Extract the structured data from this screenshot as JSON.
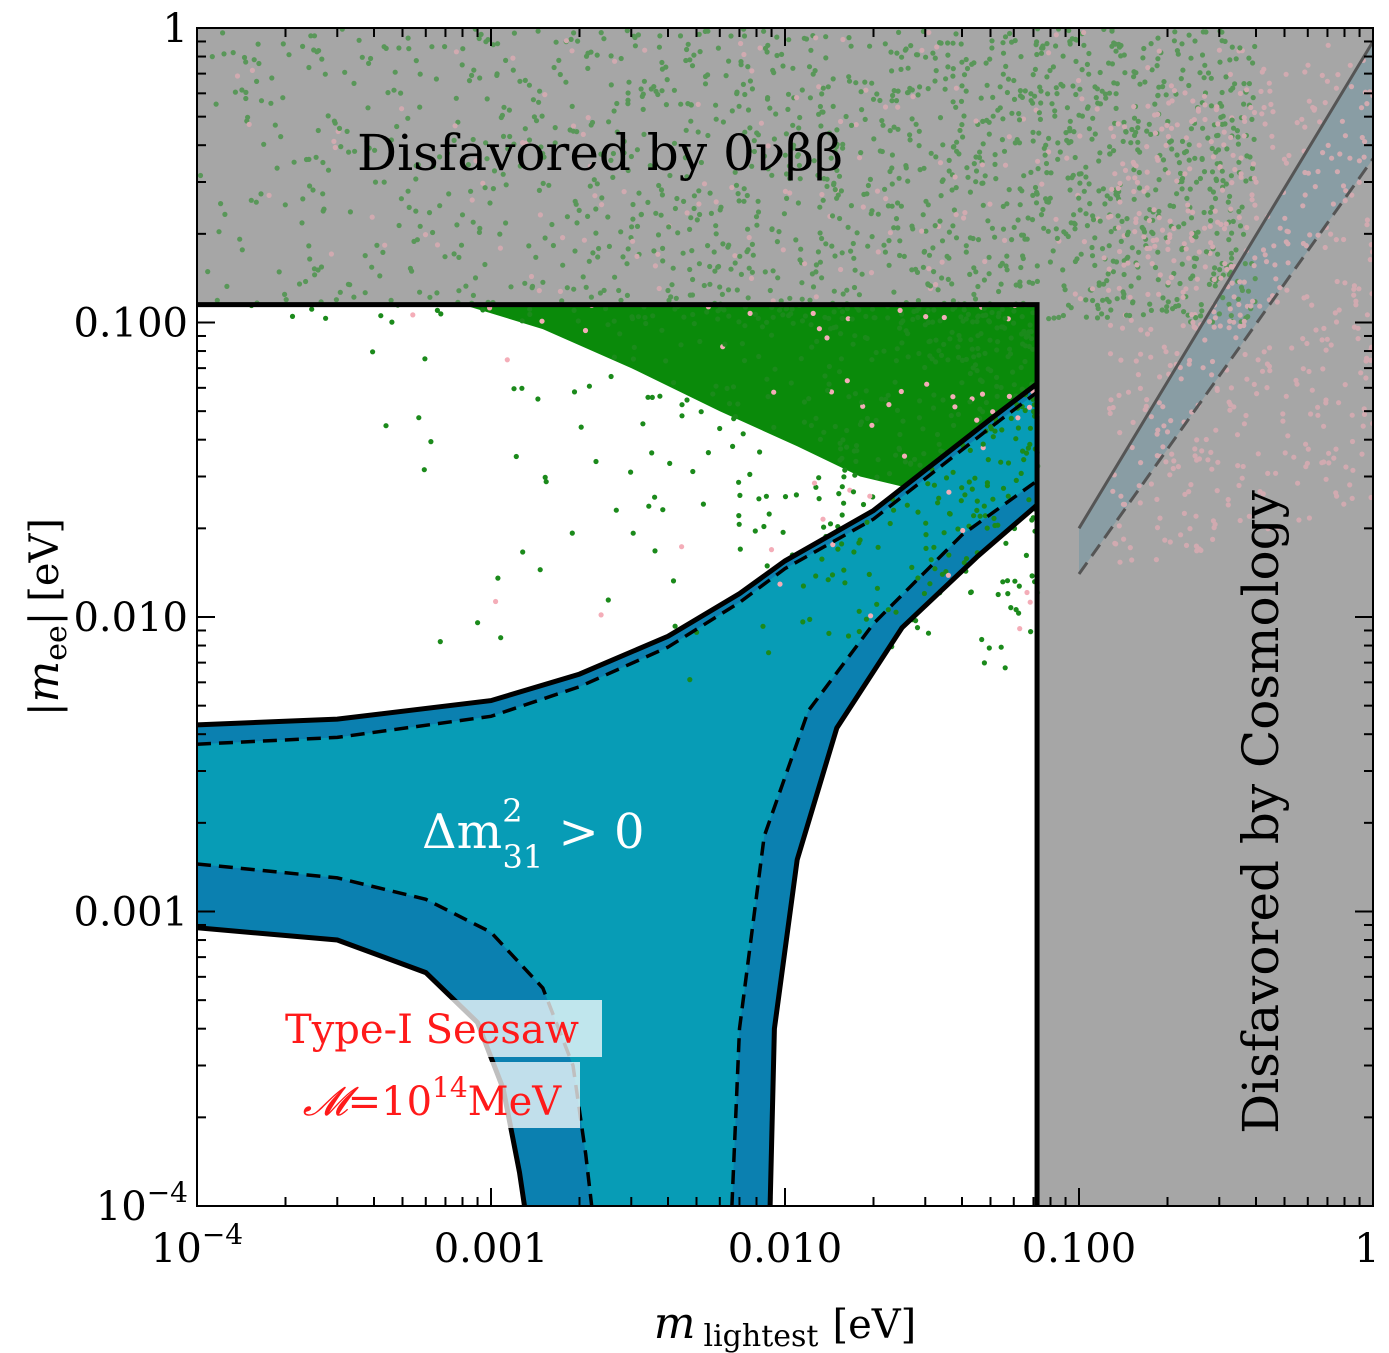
{
  "chart_data": {
    "type": "scatter",
    "xscale": "log",
    "yscale": "log",
    "xlim": [
      0.0001,
      1
    ],
    "ylim": [
      0.0001,
      1
    ],
    "xlabel": {
      "main": "m",
      "sub": "lightest",
      "unit": "[eV]"
    },
    "ylabel": {
      "pre": "|",
      "main": "m",
      "sub": "ee",
      "post": "|",
      "unit": "[eV]"
    },
    "xticks": [
      {
        "value": 0.0001,
        "base": "10",
        "exp": "−4"
      },
      {
        "value": 0.001,
        "label": "0.001"
      },
      {
        "value": 0.01,
        "label": "0.010"
      },
      {
        "value": 0.1,
        "label": "0.100"
      },
      {
        "value": 1,
        "label": "1"
      }
    ],
    "yticks": [
      {
        "value": 0.0001,
        "base": "10",
        "exp": "−4"
      },
      {
        "value": 0.001,
        "label": "0.001"
      },
      {
        "value": 0.01,
        "label": "0.010"
      },
      {
        "value": 0.1,
        "label": "0.100"
      },
      {
        "value": 1,
        "label": "1"
      }
    ],
    "excluded_regions": [
      {
        "name": "0vbb",
        "label": "Disfavored by 0νββ",
        "mee_min": 0.115
      },
      {
        "name": "cosmology",
        "label": "Disfavored by Cosmology",
        "mlightest_min": 0.072
      }
    ],
    "band": {
      "label_main": "Δm",
      "label_sup": "2",
      "label_sub": "31",
      "label_rel": " > 0",
      "upper_3sigma": [
        [
          0.0001,
          0.0043
        ],
        [
          0.0003,
          0.0045
        ],
        [
          0.001,
          0.0052
        ],
        [
          0.002,
          0.0064
        ],
        [
          0.004,
          0.0086
        ],
        [
          0.007,
          0.012
        ],
        [
          0.01,
          0.0155
        ],
        [
          0.02,
          0.023
        ],
        [
          0.05,
          0.047
        ],
        [
          0.072,
          0.062
        ]
      ],
      "upper_1sigma": [
        [
          0.0001,
          0.0037
        ],
        [
          0.0003,
          0.0039
        ],
        [
          0.001,
          0.0046
        ],
        [
          0.002,
          0.0058
        ],
        [
          0.004,
          0.0079
        ],
        [
          0.007,
          0.0112
        ],
        [
          0.01,
          0.0146
        ],
        [
          0.02,
          0.0215
        ],
        [
          0.05,
          0.044
        ],
        [
          0.072,
          0.058
        ]
      ],
      "lower_1sigma": [
        [
          0.0001,
          0.00145
        ],
        [
          0.0003,
          0.0013
        ],
        [
          0.0006,
          0.0011
        ],
        [
          0.001,
          0.00085
        ],
        [
          0.0015,
          0.00055
        ],
        [
          0.0019,
          0.0003
        ],
        [
          0.0021,
          0.00015
        ],
        [
          0.0022,
          0.0001
        ]
      ],
      "lower_3sigma": [
        [
          0.0001,
          0.00088
        ],
        [
          0.0003,
          0.0008
        ],
        [
          0.0006,
          0.00062
        ],
        [
          0.0009,
          0.00042
        ],
        [
          0.0011,
          0.00025
        ],
        [
          0.00125,
          0.00013
        ],
        [
          0.0013,
          0.0001
        ]
      ],
      "right_1sigma": [
        [
          0.0066,
          0.0001
        ],
        [
          0.007,
          0.0004
        ],
        [
          0.0085,
          0.0018
        ],
        [
          0.012,
          0.0048
        ],
        [
          0.02,
          0.0095
        ],
        [
          0.04,
          0.019
        ],
        [
          0.072,
          0.029
        ]
      ],
      "right_3sigma": [
        [
          0.0089,
          0.0001
        ],
        [
          0.0092,
          0.0004
        ],
        [
          0.011,
          0.0015
        ],
        [
          0.015,
          0.0042
        ],
        [
          0.025,
          0.0092
        ],
        [
          0.045,
          0.016
        ],
        [
          0.072,
          0.024
        ]
      ]
    },
    "cosmology_lines": [
      {
        "style": "solid",
        "points": [
          [
            0.1,
            0.02
          ],
          [
            1,
            0.9
          ]
        ]
      },
      {
        "style": "dashed",
        "points": [
          [
            0.1,
            0.014
          ],
          [
            1,
            0.36
          ]
        ]
      }
    ],
    "scatter_series": [
      {
        "name": "green points",
        "color": "#1a8a1a"
      },
      {
        "name": "pink points",
        "color": "#f2a9b8"
      }
    ],
    "annotation": {
      "line1": "Type-I Seesaw",
      "cal_M": "𝓜",
      "eq": "=10",
      "exp": "14",
      "unit": "MeV"
    }
  },
  "colors": {
    "frame": "#000000",
    "gray_region": "#a6a6a6",
    "green_fill": "#0a8a0a",
    "band_outer": "#0b80b0",
    "band_inner": "#079cb6",
    "green_point": "#1b8a1b",
    "pink_point": "#f4adb8",
    "annotation_text": "#ff1a1a"
  }
}
